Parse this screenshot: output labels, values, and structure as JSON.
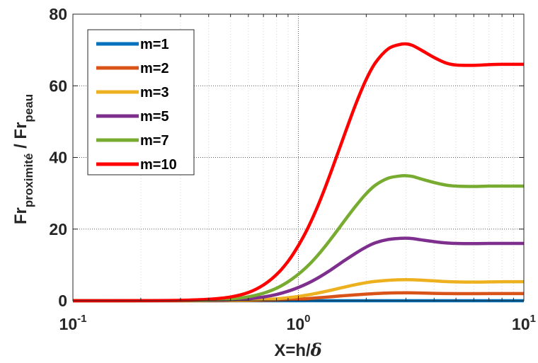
{
  "chart_data": {
    "type": "line",
    "x_scale": "log",
    "xlim": [
      0.1,
      10
    ],
    "ylim": [
      0,
      80
    ],
    "grid": true,
    "legend_position": "top-left",
    "xlabel": {
      "main": "X=h/",
      "symbol": "δ"
    },
    "ylabel": {
      "part1": "Fr",
      "sub1": "proximité",
      "part2": " / Fr",
      "sub2": "peau"
    },
    "x_ticks": [
      {
        "value": 0.1,
        "base": "10",
        "exp": "-1"
      },
      {
        "value": 1,
        "base": "10",
        "exp": "0"
      },
      {
        "value": 10,
        "base": "10",
        "exp": "1"
      }
    ],
    "y_ticks": [
      {
        "value": 0,
        "label": "0"
      },
      {
        "value": 20,
        "label": "20"
      },
      {
        "value": 40,
        "label": "40"
      },
      {
        "value": 60,
        "label": "60"
      },
      {
        "value": 80,
        "label": "80"
      }
    ],
    "x": [
      0.1,
      0.2,
      0.3,
      0.4,
      0.5,
      0.6,
      0.7,
      0.8,
      0.9,
      1.0,
      1.1,
      1.2,
      1.3,
      1.4,
      1.5,
      1.6,
      1.8,
      2.0,
      2.2,
      2.5,
      2.8,
      3.0,
      3.2,
      3.5,
      4.0,
      4.5,
      5.0,
      6.0,
      7.0,
      8.0,
      10.0
    ],
    "series": [
      {
        "name": "m=1",
        "color": "#0072BD",
        "values": [
          0,
          0,
          0,
          0,
          0,
          0,
          0,
          0,
          0,
          0,
          0,
          0,
          0,
          0,
          0,
          0,
          0,
          0,
          0,
          0,
          0,
          0,
          0,
          0,
          0,
          0,
          0,
          0,
          0,
          0,
          0
        ]
      },
      {
        "name": "m=2",
        "color": "#D95319",
        "values": [
          0,
          0,
          0,
          0.01,
          0.03,
          0.06,
          0.12,
          0.2,
          0.3,
          0.45,
          0.6,
          0.78,
          0.95,
          1.12,
          1.28,
          1.42,
          1.65,
          1.85,
          2.0,
          2.15,
          2.2,
          2.22,
          2.2,
          2.15,
          2.05,
          2.0,
          1.98,
          1.98,
          2.0,
          2.0,
          2.0
        ]
      },
      {
        "name": "m=3",
        "color": "#EDB120",
        "values": [
          0,
          0,
          0.01,
          0.03,
          0.08,
          0.16,
          0.32,
          0.55,
          0.85,
          1.2,
          1.6,
          2.05,
          2.5,
          2.95,
          3.4,
          3.8,
          4.5,
          5.05,
          5.4,
          5.7,
          5.85,
          5.88,
          5.85,
          5.75,
          5.55,
          5.35,
          5.25,
          5.2,
          5.25,
          5.3,
          5.3
        ]
      },
      {
        "name": "m=5",
        "color": "#7E2F8E",
        "values": [
          0,
          0,
          0.03,
          0.1,
          0.25,
          0.55,
          1.05,
          1.75,
          2.65,
          3.7,
          4.85,
          6.1,
          7.4,
          8.7,
          10.0,
          11.2,
          13.3,
          15.0,
          16.2,
          17.1,
          17.4,
          17.45,
          17.35,
          17.0,
          16.5,
          16.15,
          16.0,
          15.95,
          16.0,
          16.0,
          16.0
        ]
      },
      {
        "name": "m=7",
        "color": "#77AC30",
        "values": [
          0,
          0.01,
          0.06,
          0.2,
          0.5,
          1.1,
          2.1,
          3.5,
          5.3,
          7.4,
          9.7,
          12.2,
          14.8,
          17.4,
          19.9,
          22.3,
          26.5,
          29.9,
          32.3,
          34.2,
          34.8,
          34.9,
          34.7,
          34.0,
          33.0,
          32.3,
          32.0,
          31.9,
          32.0,
          32.0,
          32.0
        ]
      },
      {
        "name": "m=10",
        "color": "#FF0000",
        "values": [
          0,
          0.02,
          0.12,
          0.42,
          1.05,
          2.3,
          4.4,
          7.3,
          11.0,
          15.4,
          20.2,
          25.4,
          30.8,
          36.2,
          41.4,
          46.3,
          55.0,
          61.8,
          66.5,
          70.3,
          71.5,
          71.7,
          71.3,
          70.0,
          67.9,
          66.4,
          65.8,
          65.7,
          65.9,
          66.0,
          66.0
        ]
      }
    ]
  }
}
